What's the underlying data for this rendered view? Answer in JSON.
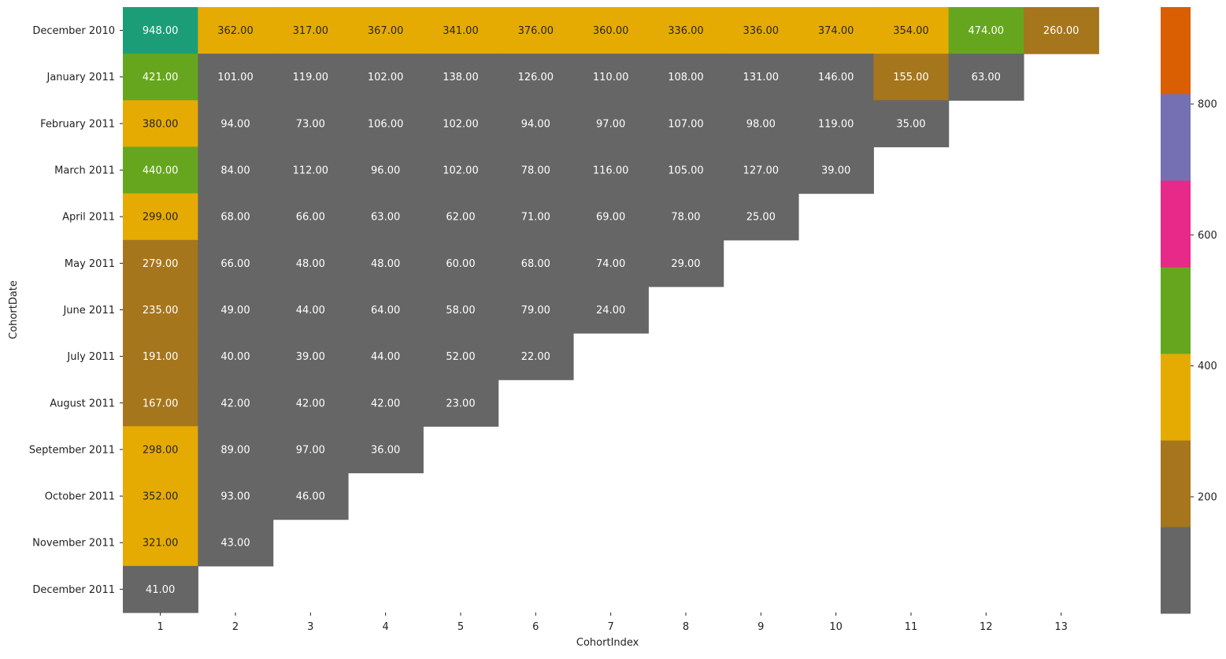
{
  "chart_data": {
    "type": "heatmap",
    "title": "",
    "xlabel": "CohortIndex",
    "ylabel": "CohortDate",
    "x_categories": [
      "1",
      "2",
      "3",
      "4",
      "5",
      "6",
      "7",
      "8",
      "9",
      "10",
      "11",
      "12",
      "13"
    ],
    "y_categories": [
      "December 2010",
      "January 2011",
      "February 2011",
      "March 2011",
      "April 2011",
      "May 2011",
      "June 2011",
      "July 2011",
      "August 2011",
      "September 2011",
      "October 2011",
      "November 2011",
      "December 2011"
    ],
    "values": [
      [
        948,
        362,
        317,
        367,
        341,
        376,
        360,
        336,
        336,
        374,
        354,
        474,
        260
      ],
      [
        421,
        101,
        119,
        102,
        138,
        126,
        110,
        108,
        131,
        146,
        155,
        63
      ],
      [
        380,
        94,
        73,
        106,
        102,
        94,
        97,
        107,
        98,
        119,
        35
      ],
      [
        440,
        84,
        112,
        96,
        102,
        78,
        116,
        105,
        127,
        39
      ],
      [
        299,
        68,
        66,
        63,
        62,
        71,
        69,
        78,
        25
      ],
      [
        279,
        66,
        48,
        48,
        60,
        68,
        74,
        29
      ],
      [
        235,
        49,
        44,
        64,
        58,
        79,
        24
      ],
      [
        191,
        40,
        39,
        44,
        52,
        22
      ],
      [
        167,
        42,
        42,
        42,
        23
      ],
      [
        298,
        89,
        97,
        36
      ],
      [
        352,
        93,
        46
      ],
      [
        321,
        43
      ],
      [
        41
      ]
    ],
    "value_format": "two decimals",
    "colorbar": {
      "colormap": "Dark2_r",
      "range": [
        22,
        948
      ],
      "ticks": [
        200,
        400,
        600,
        800
      ],
      "tick_labels": [
        "200",
        "400",
        "600",
        "800"
      ],
      "bins": [
        {
          "from": 22,
          "to": 154.29,
          "color": "#666666"
        },
        {
          "from": 154.29,
          "to": 286.57,
          "color": "#a6761d"
        },
        {
          "from": 286.57,
          "to": 418.86,
          "color": "#e6ab02"
        },
        {
          "from": 418.86,
          "to": 551.14,
          "color": "#66a61e"
        },
        {
          "from": 551.14,
          "to": 683.43,
          "color": "#e7298a"
        },
        {
          "from": 683.43,
          "to": 815.71,
          "color": "#7570b3"
        },
        {
          "from": 815.71,
          "to": 948,
          "color": "#d95f02"
        },
        {
          "from": 948,
          "to": 948,
          "color": "#1b9e77"
        }
      ]
    },
    "text_colors": {
      "light": "#ffffff",
      "dark": "#262626"
    },
    "dark_text_bin_color": "#e6ab02",
    "grid": false,
    "legend": "colorbar at right"
  }
}
